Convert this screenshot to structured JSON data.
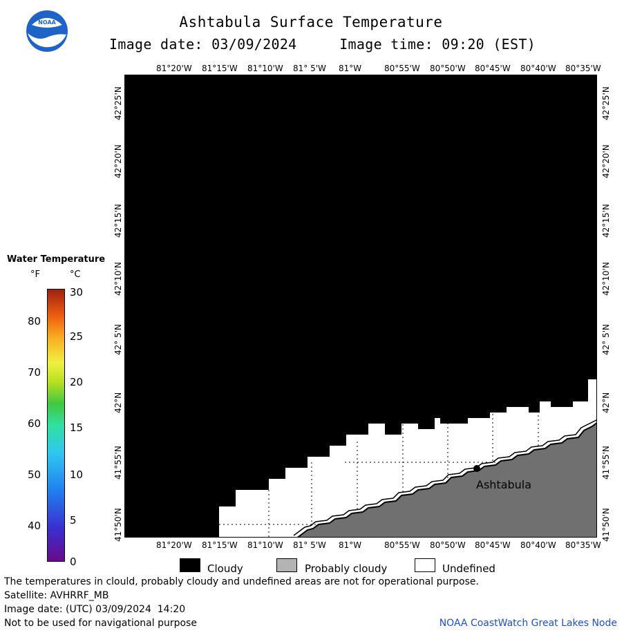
{
  "header": {
    "title": "Ashtabula Surface Temperature",
    "subtitle": "Image date: 03/09/2024     Image time: 09:20 (EST)"
  },
  "map": {
    "lon_labels": [
      "81°20'W",
      "81°15'W",
      "81°10'W",
      "81° 5'W",
      "81°W",
      "80°55'W",
      "80°50'W",
      "80°45'W",
      "80°40'W",
      "80°35'W"
    ],
    "lat_labels": [
      "42°25'N",
      "42°20'N",
      "42°15'N",
      "42°10'N",
      "42° 5'N",
      "42°N",
      "41°55'N",
      "41°50'N"
    ],
    "city_label": "Ashtabula"
  },
  "legend": {
    "title": "Water Temperature",
    "unit_f": "°F",
    "unit_c": "°C",
    "f_ticks": [
      "80",
      "70",
      "60",
      "50",
      "40"
    ],
    "c_ticks": [
      "30",
      "25",
      "20",
      "15",
      "10",
      "5",
      "0"
    ],
    "categories": [
      {
        "label": "Cloudy",
        "color": "#000000"
      },
      {
        "label": "Probably cloudy",
        "color": "#b4b4b4"
      },
      {
        "label": "Undefined",
        "color": "#ffffff"
      }
    ]
  },
  "footer": {
    "line1": "The temperatures in clould, probably cloudy and undefined areas are not for operational purpose.",
    "line2": "Satellite: AVHRRF_MB",
    "line3": "Image date: (UTC) 03/09/2024  14:20",
    "line4": "Not to be used for navigational purpose",
    "credit": "NOAA CoastWatch Great Lakes Node"
  },
  "colors": {
    "cloud": "#000000",
    "land": "#707070",
    "undefined": "#ffffff",
    "credit_text": "#1e50c8",
    "logo_blue": "#1e64c8"
  }
}
